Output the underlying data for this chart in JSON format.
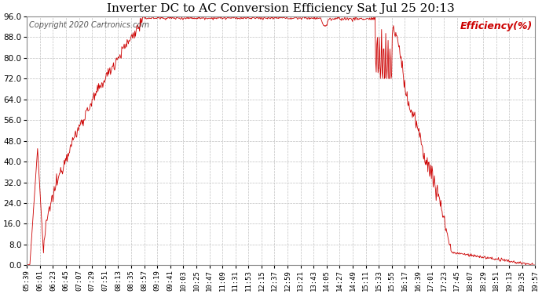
{
  "title": "Inverter DC to AC Conversion Efficiency Sat Jul 25 20:13",
  "copyright": "Copyright 2020 Cartronics.com",
  "legend_label": "Efficiency(%)",
  "line_color": "#cc0000",
  "legend_color": "#cc0000",
  "background_color": "#ffffff",
  "grid_color": "#c0c0c0",
  "title_fontsize": 11,
  "copyright_fontsize": 7,
  "legend_fontsize": 9,
  "tick_fontsize": 7,
  "ylim": [
    0.0,
    96.0
  ],
  "yticks": [
    0.0,
    8.0,
    16.0,
    24.0,
    32.0,
    40.0,
    48.0,
    56.0,
    64.0,
    72.0,
    80.0,
    88.0,
    96.0
  ],
  "x_labels": [
    "05:39",
    "06:01",
    "06:23",
    "06:45",
    "07:07",
    "07:29",
    "07:51",
    "08:13",
    "08:35",
    "08:57",
    "09:19",
    "09:41",
    "10:03",
    "10:25",
    "10:47",
    "11:09",
    "11:31",
    "11:53",
    "12:15",
    "12:37",
    "12:59",
    "13:21",
    "13:43",
    "14:05",
    "14:27",
    "14:49",
    "15:11",
    "15:33",
    "15:55",
    "16:17",
    "16:39",
    "17:01",
    "17:23",
    "17:45",
    "18:07",
    "18:29",
    "18:51",
    "19:13",
    "19:35",
    "19:57"
  ]
}
